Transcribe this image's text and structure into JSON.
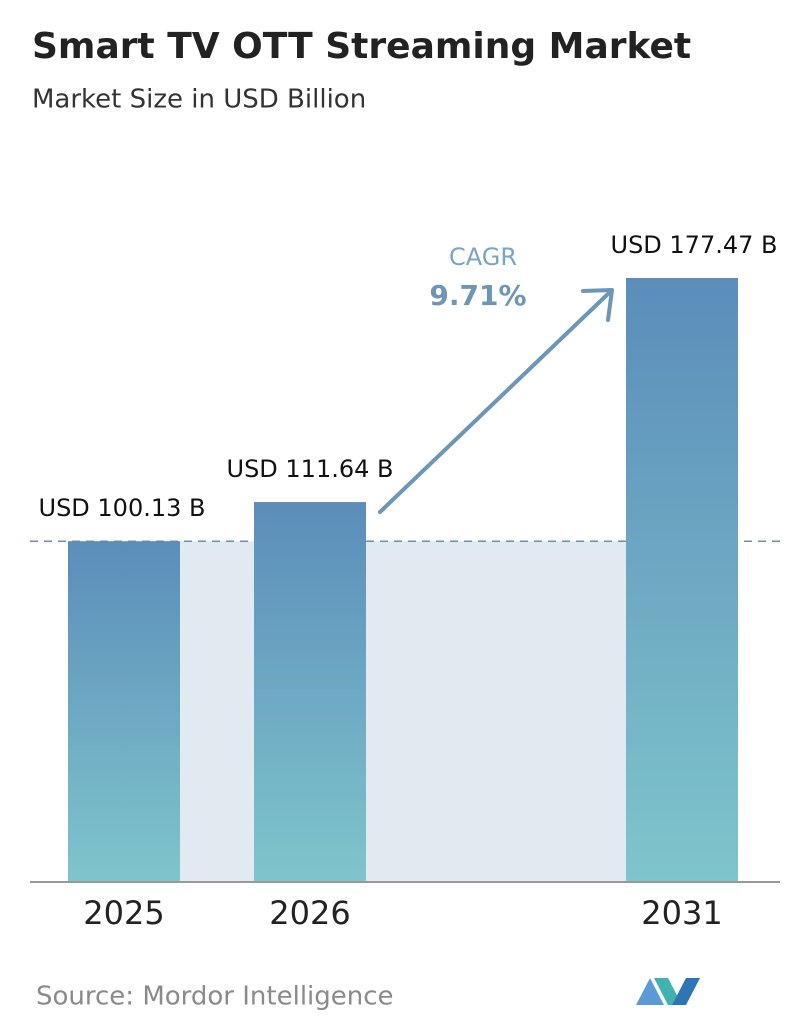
{
  "chart_data": {
    "type": "bar",
    "title": "Smart TV OTT Streaming Market",
    "subtitle": "Market Size in USD Billion",
    "categories": [
      "2025",
      "2026",
      "2031"
    ],
    "values": [
      100.13,
      111.64,
      177.47
    ],
    "value_labels": [
      "USD 100.13 B",
      "USD 111.64 B",
      "USD 177.47 B"
    ],
    "annotation": {
      "label": "CAGR",
      "value": "9.71%"
    },
    "source": "Source: Mordor Intelligence"
  }
}
